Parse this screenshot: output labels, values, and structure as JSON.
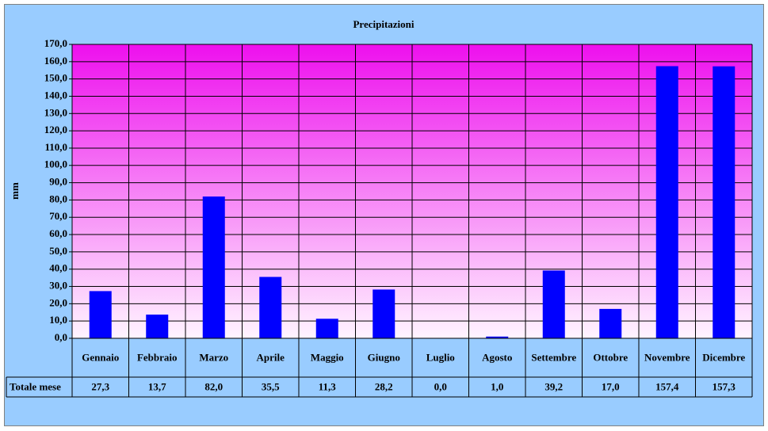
{
  "chart_data": {
    "type": "bar",
    "title": "Precipitazioni",
    "y_label": "mm",
    "categories": [
      "Gennaio",
      "Febbraio",
      "Marzo",
      "Aprile",
      "Maggio",
      "Giugno",
      "Luglio",
      "Agosto",
      "Settembre",
      "Ottobre",
      "Novembre",
      "Dicembre"
    ],
    "series": [
      {
        "name": "Totale mese",
        "color": "#0000FF",
        "values": [
          27.3,
          13.7,
          82.0,
          35.5,
          11.3,
          28.2,
          0.0,
          1.0,
          39.2,
          17.0,
          157.4,
          157.3
        ],
        "value_labels": [
          "27,3",
          "13,7",
          "82,0",
          "35,5",
          "11,3",
          "28,2",
          "0,0",
          "1,0",
          "39,2",
          "17,0",
          "157,4",
          "157,3"
        ]
      }
    ],
    "ylim": [
      0,
      170
    ],
    "yticks": [
      {
        "value": 0,
        "label": "0,0"
      },
      {
        "value": 10,
        "label": "10,0"
      },
      {
        "value": 20,
        "label": "20,0"
      },
      {
        "value": 30,
        "label": "30,0"
      },
      {
        "value": 40,
        "label": "40,0"
      },
      {
        "value": 50,
        "label": "50,0"
      },
      {
        "value": 60,
        "label": "60,0"
      },
      {
        "value": 70,
        "label": "70,0"
      },
      {
        "value": 80,
        "label": "80,0"
      },
      {
        "value": 90,
        "label": "90,0"
      },
      {
        "value": 100,
        "label": "100,0"
      },
      {
        "value": 110,
        "label": "110,0"
      },
      {
        "value": 120,
        "label": "120,0"
      },
      {
        "value": 130,
        "label": "130,0"
      },
      {
        "value": 140,
        "label": "140,0"
      },
      {
        "value": 150,
        "label": "150,0"
      },
      {
        "value": 160,
        "label": "160,0"
      },
      {
        "value": 170,
        "label": "170,0"
      }
    ],
    "grid": true
  }
}
